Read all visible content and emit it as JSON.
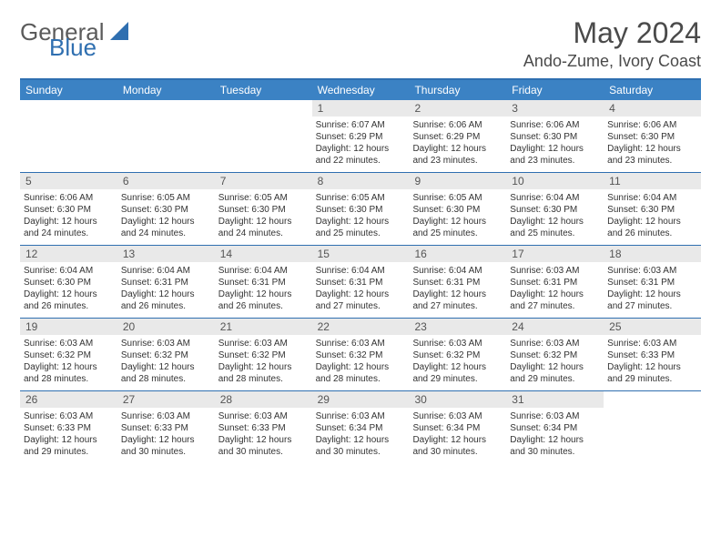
{
  "logo": {
    "general": "General",
    "blue": "Blue"
  },
  "title": "May 2024",
  "location": "Ando-Zume, Ivory Coast",
  "styling": {
    "brand_blue": "#2f6fb0",
    "header_blue": "#3b82c4",
    "daynum_bg": "#e9e9e9",
    "text_gray": "#4a4a4a",
    "page_bg": "#ffffff",
    "title_fontsize": 32,
    "location_fontsize": 18,
    "header_fontsize": 12,
    "cell_fontsize": 10
  },
  "dayHeaders": [
    "Sunday",
    "Monday",
    "Tuesday",
    "Wednesday",
    "Thursday",
    "Friday",
    "Saturday"
  ],
  "weeks": [
    [
      {
        "n": "",
        "lines": []
      },
      {
        "n": "",
        "lines": []
      },
      {
        "n": "",
        "lines": []
      },
      {
        "n": "1",
        "lines": [
          "Sunrise: 6:07 AM",
          "Sunset: 6:29 PM",
          "Daylight: 12 hours",
          "and 22 minutes."
        ]
      },
      {
        "n": "2",
        "lines": [
          "Sunrise: 6:06 AM",
          "Sunset: 6:29 PM",
          "Daylight: 12 hours",
          "and 23 minutes."
        ]
      },
      {
        "n": "3",
        "lines": [
          "Sunrise: 6:06 AM",
          "Sunset: 6:30 PM",
          "Daylight: 12 hours",
          "and 23 minutes."
        ]
      },
      {
        "n": "4",
        "lines": [
          "Sunrise: 6:06 AM",
          "Sunset: 6:30 PM",
          "Daylight: 12 hours",
          "and 23 minutes."
        ]
      }
    ],
    [
      {
        "n": "5",
        "lines": [
          "Sunrise: 6:06 AM",
          "Sunset: 6:30 PM",
          "Daylight: 12 hours",
          "and 24 minutes."
        ]
      },
      {
        "n": "6",
        "lines": [
          "Sunrise: 6:05 AM",
          "Sunset: 6:30 PM",
          "Daylight: 12 hours",
          "and 24 minutes."
        ]
      },
      {
        "n": "7",
        "lines": [
          "Sunrise: 6:05 AM",
          "Sunset: 6:30 PM",
          "Daylight: 12 hours",
          "and 24 minutes."
        ]
      },
      {
        "n": "8",
        "lines": [
          "Sunrise: 6:05 AM",
          "Sunset: 6:30 PM",
          "Daylight: 12 hours",
          "and 25 minutes."
        ]
      },
      {
        "n": "9",
        "lines": [
          "Sunrise: 6:05 AM",
          "Sunset: 6:30 PM",
          "Daylight: 12 hours",
          "and 25 minutes."
        ]
      },
      {
        "n": "10",
        "lines": [
          "Sunrise: 6:04 AM",
          "Sunset: 6:30 PM",
          "Daylight: 12 hours",
          "and 25 minutes."
        ]
      },
      {
        "n": "11",
        "lines": [
          "Sunrise: 6:04 AM",
          "Sunset: 6:30 PM",
          "Daylight: 12 hours",
          "and 26 minutes."
        ]
      }
    ],
    [
      {
        "n": "12",
        "lines": [
          "Sunrise: 6:04 AM",
          "Sunset: 6:30 PM",
          "Daylight: 12 hours",
          "and 26 minutes."
        ]
      },
      {
        "n": "13",
        "lines": [
          "Sunrise: 6:04 AM",
          "Sunset: 6:31 PM",
          "Daylight: 12 hours",
          "and 26 minutes."
        ]
      },
      {
        "n": "14",
        "lines": [
          "Sunrise: 6:04 AM",
          "Sunset: 6:31 PM",
          "Daylight: 12 hours",
          "and 26 minutes."
        ]
      },
      {
        "n": "15",
        "lines": [
          "Sunrise: 6:04 AM",
          "Sunset: 6:31 PM",
          "Daylight: 12 hours",
          "and 27 minutes."
        ]
      },
      {
        "n": "16",
        "lines": [
          "Sunrise: 6:04 AM",
          "Sunset: 6:31 PM",
          "Daylight: 12 hours",
          "and 27 minutes."
        ]
      },
      {
        "n": "17",
        "lines": [
          "Sunrise: 6:03 AM",
          "Sunset: 6:31 PM",
          "Daylight: 12 hours",
          "and 27 minutes."
        ]
      },
      {
        "n": "18",
        "lines": [
          "Sunrise: 6:03 AM",
          "Sunset: 6:31 PM",
          "Daylight: 12 hours",
          "and 27 minutes."
        ]
      }
    ],
    [
      {
        "n": "19",
        "lines": [
          "Sunrise: 6:03 AM",
          "Sunset: 6:32 PM",
          "Daylight: 12 hours",
          "and 28 minutes."
        ]
      },
      {
        "n": "20",
        "lines": [
          "Sunrise: 6:03 AM",
          "Sunset: 6:32 PM",
          "Daylight: 12 hours",
          "and 28 minutes."
        ]
      },
      {
        "n": "21",
        "lines": [
          "Sunrise: 6:03 AM",
          "Sunset: 6:32 PM",
          "Daylight: 12 hours",
          "and 28 minutes."
        ]
      },
      {
        "n": "22",
        "lines": [
          "Sunrise: 6:03 AM",
          "Sunset: 6:32 PM",
          "Daylight: 12 hours",
          "and 28 minutes."
        ]
      },
      {
        "n": "23",
        "lines": [
          "Sunrise: 6:03 AM",
          "Sunset: 6:32 PM",
          "Daylight: 12 hours",
          "and 29 minutes."
        ]
      },
      {
        "n": "24",
        "lines": [
          "Sunrise: 6:03 AM",
          "Sunset: 6:32 PM",
          "Daylight: 12 hours",
          "and 29 minutes."
        ]
      },
      {
        "n": "25",
        "lines": [
          "Sunrise: 6:03 AM",
          "Sunset: 6:33 PM",
          "Daylight: 12 hours",
          "and 29 minutes."
        ]
      }
    ],
    [
      {
        "n": "26",
        "lines": [
          "Sunrise: 6:03 AM",
          "Sunset: 6:33 PM",
          "Daylight: 12 hours",
          "and 29 minutes."
        ]
      },
      {
        "n": "27",
        "lines": [
          "Sunrise: 6:03 AM",
          "Sunset: 6:33 PM",
          "Daylight: 12 hours",
          "and 30 minutes."
        ]
      },
      {
        "n": "28",
        "lines": [
          "Sunrise: 6:03 AM",
          "Sunset: 6:33 PM",
          "Daylight: 12 hours",
          "and 30 minutes."
        ]
      },
      {
        "n": "29",
        "lines": [
          "Sunrise: 6:03 AM",
          "Sunset: 6:34 PM",
          "Daylight: 12 hours",
          "and 30 minutes."
        ]
      },
      {
        "n": "30",
        "lines": [
          "Sunrise: 6:03 AM",
          "Sunset: 6:34 PM",
          "Daylight: 12 hours",
          "and 30 minutes."
        ]
      },
      {
        "n": "31",
        "lines": [
          "Sunrise: 6:03 AM",
          "Sunset: 6:34 PM",
          "Daylight: 12 hours",
          "and 30 minutes."
        ]
      },
      {
        "n": "",
        "lines": []
      }
    ]
  ]
}
